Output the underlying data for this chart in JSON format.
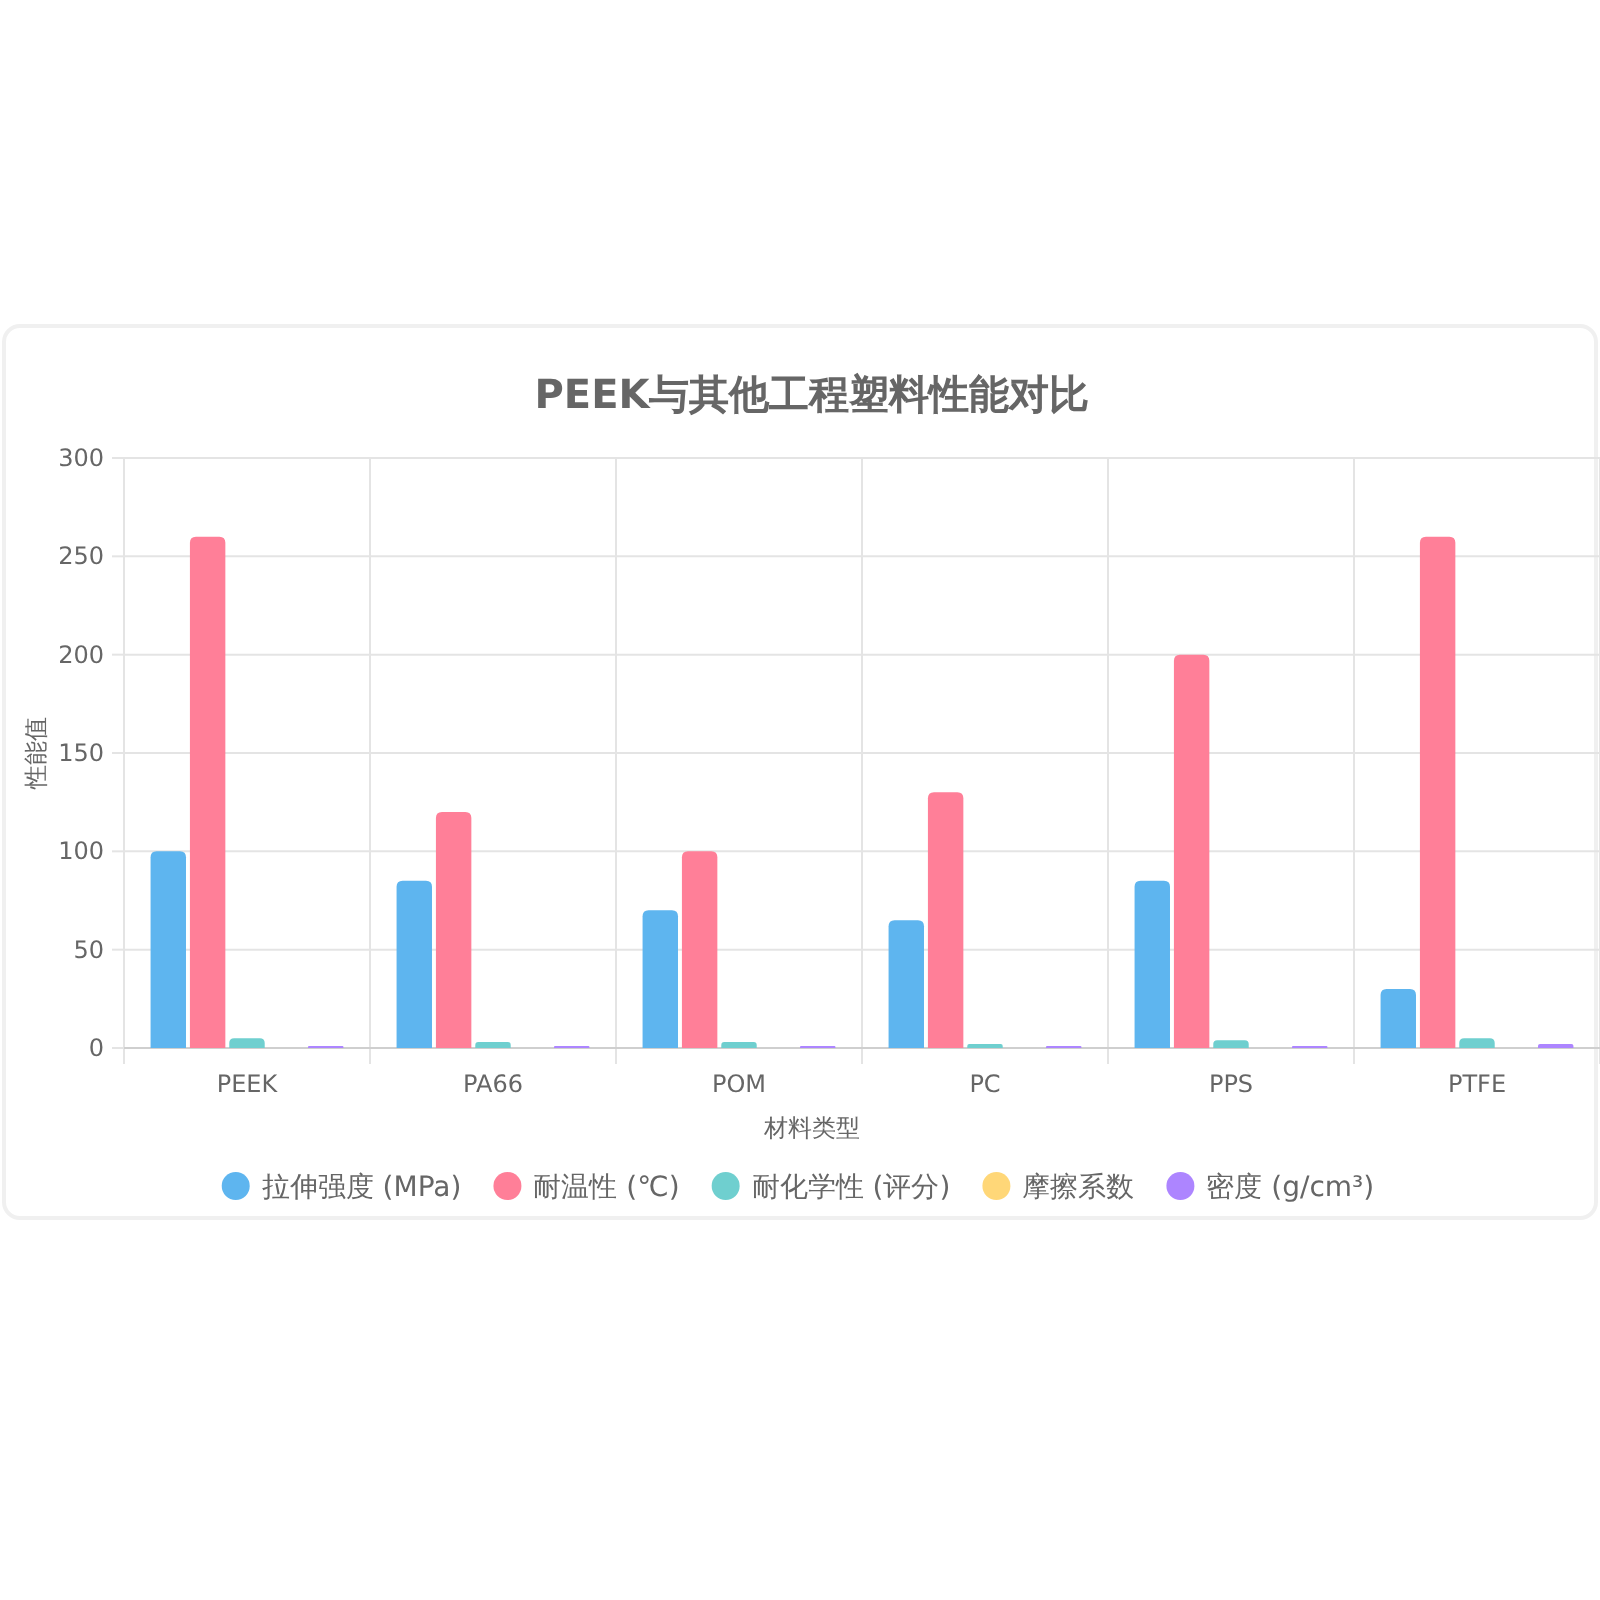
{
  "chart_data": {
    "type": "bar",
    "title": "PEEK与其他工程塑料性能对比",
    "xlabel": "材料类型",
    "ylabel": "性能值",
    "categories": [
      "PEEK",
      "PA66",
      "POM",
      "PC",
      "PPS",
      "PTFE"
    ],
    "series": [
      {
        "name": "拉伸强度 (MPa)",
        "color": "#5eb5ef",
        "values": [
          100,
          85,
          70,
          65,
          85,
          30
        ]
      },
      {
        "name": "耐温性 (℃)",
        "color": "#ff7f98",
        "values": [
          260,
          120,
          100,
          130,
          200,
          260
        ]
      },
      {
        "name": "耐化学性 (评分)",
        "color": "#6fcfcf",
        "values": [
          5,
          3,
          3,
          2,
          4,
          5
        ]
      },
      {
        "name": "摩擦系数",
        "color": "#ffd778",
        "values": [
          null,
          null,
          null,
          null,
          null,
          null
        ]
      },
      {
        "name": "密度 (g/cm³)",
        "color": "#ad85ff",
        "values": [
          1,
          1,
          1,
          1,
          1,
          2
        ]
      }
    ],
    "ylim": [
      0,
      300
    ],
    "yticks": [
      0,
      50,
      100,
      150,
      200,
      250,
      300
    ],
    "grid": true,
    "legend": "bottom"
  }
}
